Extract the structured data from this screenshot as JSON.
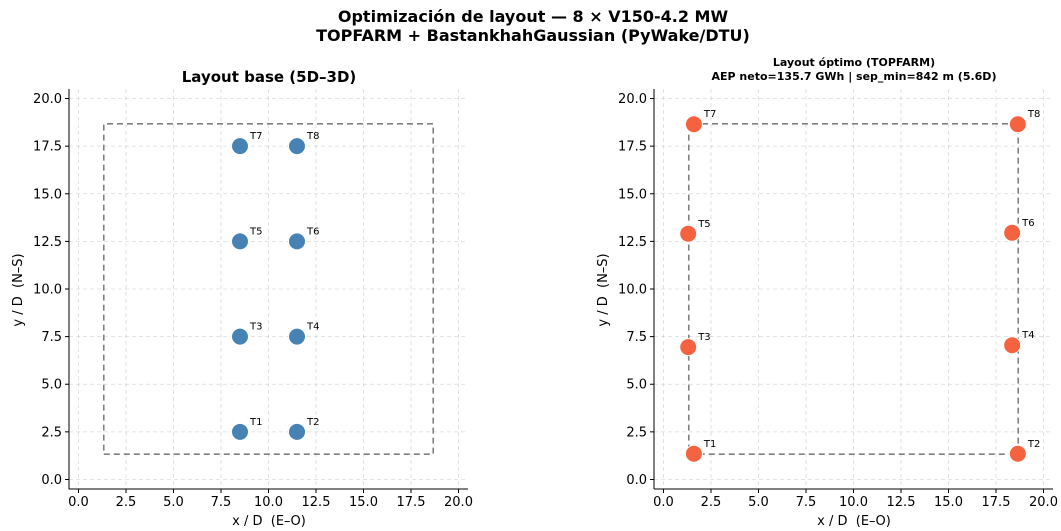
{
  "figure": {
    "suptitle_line1": "Optimización de layout — 8 × V150-4.2 MW",
    "suptitle_line2": "TOPFARM + BastankhahGaussian (PyWake/DTU)"
  },
  "chart_data": [
    {
      "type": "scatter",
      "title": "Layout base (5D–3D)",
      "subtitle": "",
      "xlabel": "x / D  (E–O)",
      "ylabel": "y / D  (N–S)",
      "xlim": [
        -0.5,
        20.5
      ],
      "ylim": [
        -0.5,
        20.5
      ],
      "xticks": [
        0.0,
        2.5,
        5.0,
        7.5,
        10.0,
        12.5,
        15.0,
        17.5,
        20.0
      ],
      "yticks": [
        0.0,
        2.5,
        5.0,
        7.5,
        10.0,
        12.5,
        15.0,
        17.5,
        20.0
      ],
      "grid": true,
      "boundary": {
        "x": [
          1.33,
          18.67,
          18.67,
          1.33,
          1.33
        ],
        "y": [
          1.33,
          1.33,
          18.67,
          18.67,
          1.33
        ]
      },
      "marker_color": "#4682b4",
      "boundary_color": "#808080",
      "points": [
        {
          "label": "T1",
          "x": 8.5,
          "y": 2.5
        },
        {
          "label": "T2",
          "x": 11.5,
          "y": 2.5
        },
        {
          "label": "T3",
          "x": 8.5,
          "y": 7.5
        },
        {
          "label": "T4",
          "x": 11.5,
          "y": 7.5
        },
        {
          "label": "T5",
          "x": 8.5,
          "y": 12.5
        },
        {
          "label": "T6",
          "x": 11.5,
          "y": 12.5
        },
        {
          "label": "T7",
          "x": 8.5,
          "y": 17.5
        },
        {
          "label": "T8",
          "x": 11.5,
          "y": 17.5
        }
      ]
    },
    {
      "type": "scatter",
      "title": "Layout óptimo (TOPFARM)",
      "subtitle": "AEP neto=135.7 GWh | sep_min=842 m (5.6D)",
      "xlabel": "x / D  (E–O)",
      "ylabel": "y / D  (N–S)",
      "xlim": [
        -0.5,
        20.5
      ],
      "ylim": [
        -0.5,
        20.5
      ],
      "xticks": [
        0.0,
        2.5,
        5.0,
        7.5,
        10.0,
        12.5,
        15.0,
        17.5,
        20.0
      ],
      "yticks": [
        0.0,
        2.5,
        5.0,
        7.5,
        10.0,
        12.5,
        15.0,
        17.5,
        20.0
      ],
      "grid": true,
      "boundary": {
        "x": [
          1.33,
          18.67,
          18.67,
          1.33,
          1.33
        ],
        "y": [
          1.33,
          1.33,
          18.67,
          18.67,
          1.33
        ]
      },
      "marker_color": "#f4623f",
      "boundary_color": "#808080",
      "points": [
        {
          "label": "T1",
          "x": 1.6,
          "y": 1.35
        },
        {
          "label": "T2",
          "x": 18.65,
          "y": 1.35
        },
        {
          "label": "T3",
          "x": 1.3,
          "y": 6.95
        },
        {
          "label": "T4",
          "x": 18.35,
          "y": 7.05
        },
        {
          "label": "T5",
          "x": 1.3,
          "y": 12.9
        },
        {
          "label": "T6",
          "x": 18.35,
          "y": 12.95
        },
        {
          "label": "T7",
          "x": 1.6,
          "y": 18.65
        },
        {
          "label": "T8",
          "x": 18.65,
          "y": 18.65
        }
      ]
    }
  ]
}
